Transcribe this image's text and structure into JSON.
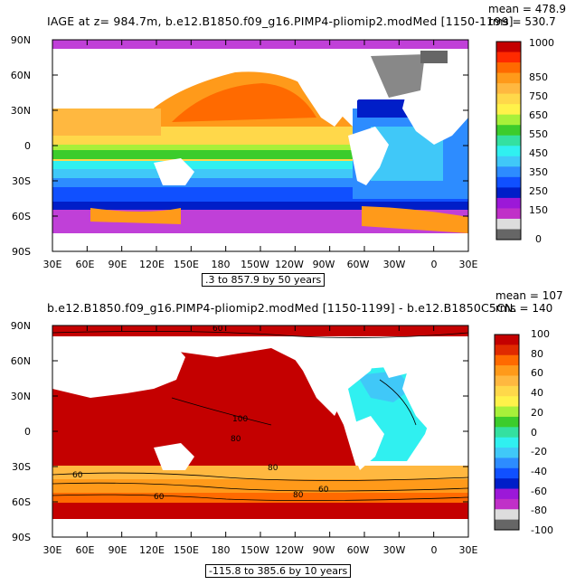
{
  "top": {
    "title": "IAGE at z= 984.7m, b.e12.B1850.f09_g16.PIMP4-pliomip2.modMed [1150-1199]",
    "stat_mean": "mean = 478.9",
    "stat_rms": "rms = 530.7",
    "range_text": ".3 to 857.9 by 50 years",
    "colorbar": {
      "labels": [
        "1000",
        "850",
        "750",
        "650",
        "550",
        "450",
        "350",
        "250",
        "150",
        "0"
      ],
      "colors": [
        "#c40000",
        "#ff2a00",
        "#ff6a00",
        "#ff9a1a",
        "#ffb840",
        "#ffd84a",
        "#fff24a",
        "#a8f03a",
        "#3ccc2c",
        "#34e0a0",
        "#30f0f0",
        "#40c8f8",
        "#2d8cff",
        "#1050ff",
        "#001ec8",
        "#9c18d8",
        "#c030c8",
        "#dddddd",
        "#666666"
      ]
    }
  },
  "bottom": {
    "title": "b.e12.B1850.f09_g16.PIMP4-pliomip2.modMed [1150-1199] - b.e12.B1850C5CN.",
    "stat_mean": "mean = 107",
    "stat_rms": "rms = 140",
    "range_text": "-115.8 to 385.6 by 10 years",
    "contour_labels": [
      "60",
      "100",
      "80",
      "60",
      "80",
      "60",
      "80",
      "60"
    ],
    "colorbar": {
      "labels": [
        "100",
        "80",
        "60",
        "40",
        "20",
        "0",
        "-20",
        "-40",
        "-60",
        "-80",
        "-100"
      ],
      "colors": [
        "#c40000",
        "#e02a00",
        "#ff6a00",
        "#ff9a1a",
        "#ffb840",
        "#ffd84a",
        "#fff24a",
        "#a8f03a",
        "#3ccc2c",
        "#34e0a0",
        "#30f0f0",
        "#40c8f8",
        "#2d8cff",
        "#1050ff",
        "#001ec8",
        "#9c18d8",
        "#c030c8",
        "#dddddd",
        "#666666"
      ]
    }
  },
  "axes": {
    "lat_labels": [
      "90N",
      "60N",
      "30N",
      "0",
      "30S",
      "60S",
      "90S"
    ],
    "lon_labels": [
      "30E",
      "60E",
      "90E",
      "120E",
      "150E",
      "180",
      "150W",
      "120W",
      "90W",
      "60W",
      "30W",
      "0",
      "30E"
    ]
  }
}
